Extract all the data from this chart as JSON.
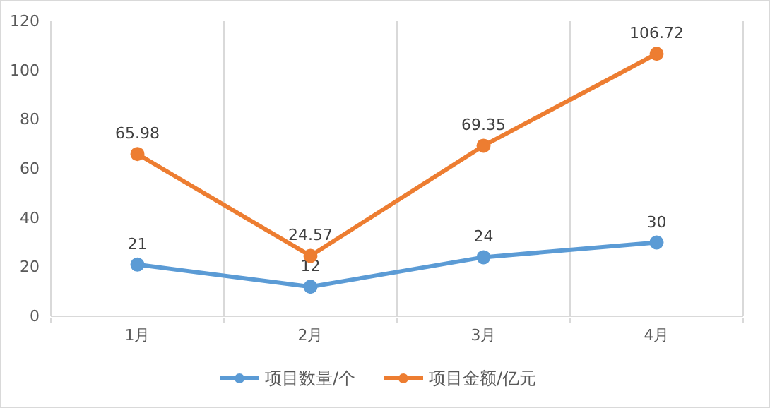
{
  "chart_data": {
    "type": "line",
    "categories": [
      "1月",
      "2月",
      "3月",
      "4月"
    ],
    "series": [
      {
        "name": "项目数量/个",
        "color": "#5b9bd5",
        "values": [
          21,
          12,
          24,
          30
        ]
      },
      {
        "name": "项目金额/亿元",
        "color": "#ed7d31",
        "values": [
          65.98,
          24.57,
          69.35,
          106.72
        ]
      }
    ],
    "ylim": [
      0,
      120
    ],
    "yticks": [
      0,
      20,
      40,
      60,
      80,
      100,
      120
    ],
    "grid": "x",
    "legend": "bottom",
    "marker": "circle",
    "line_style": "solid",
    "data_labels": true
  }
}
